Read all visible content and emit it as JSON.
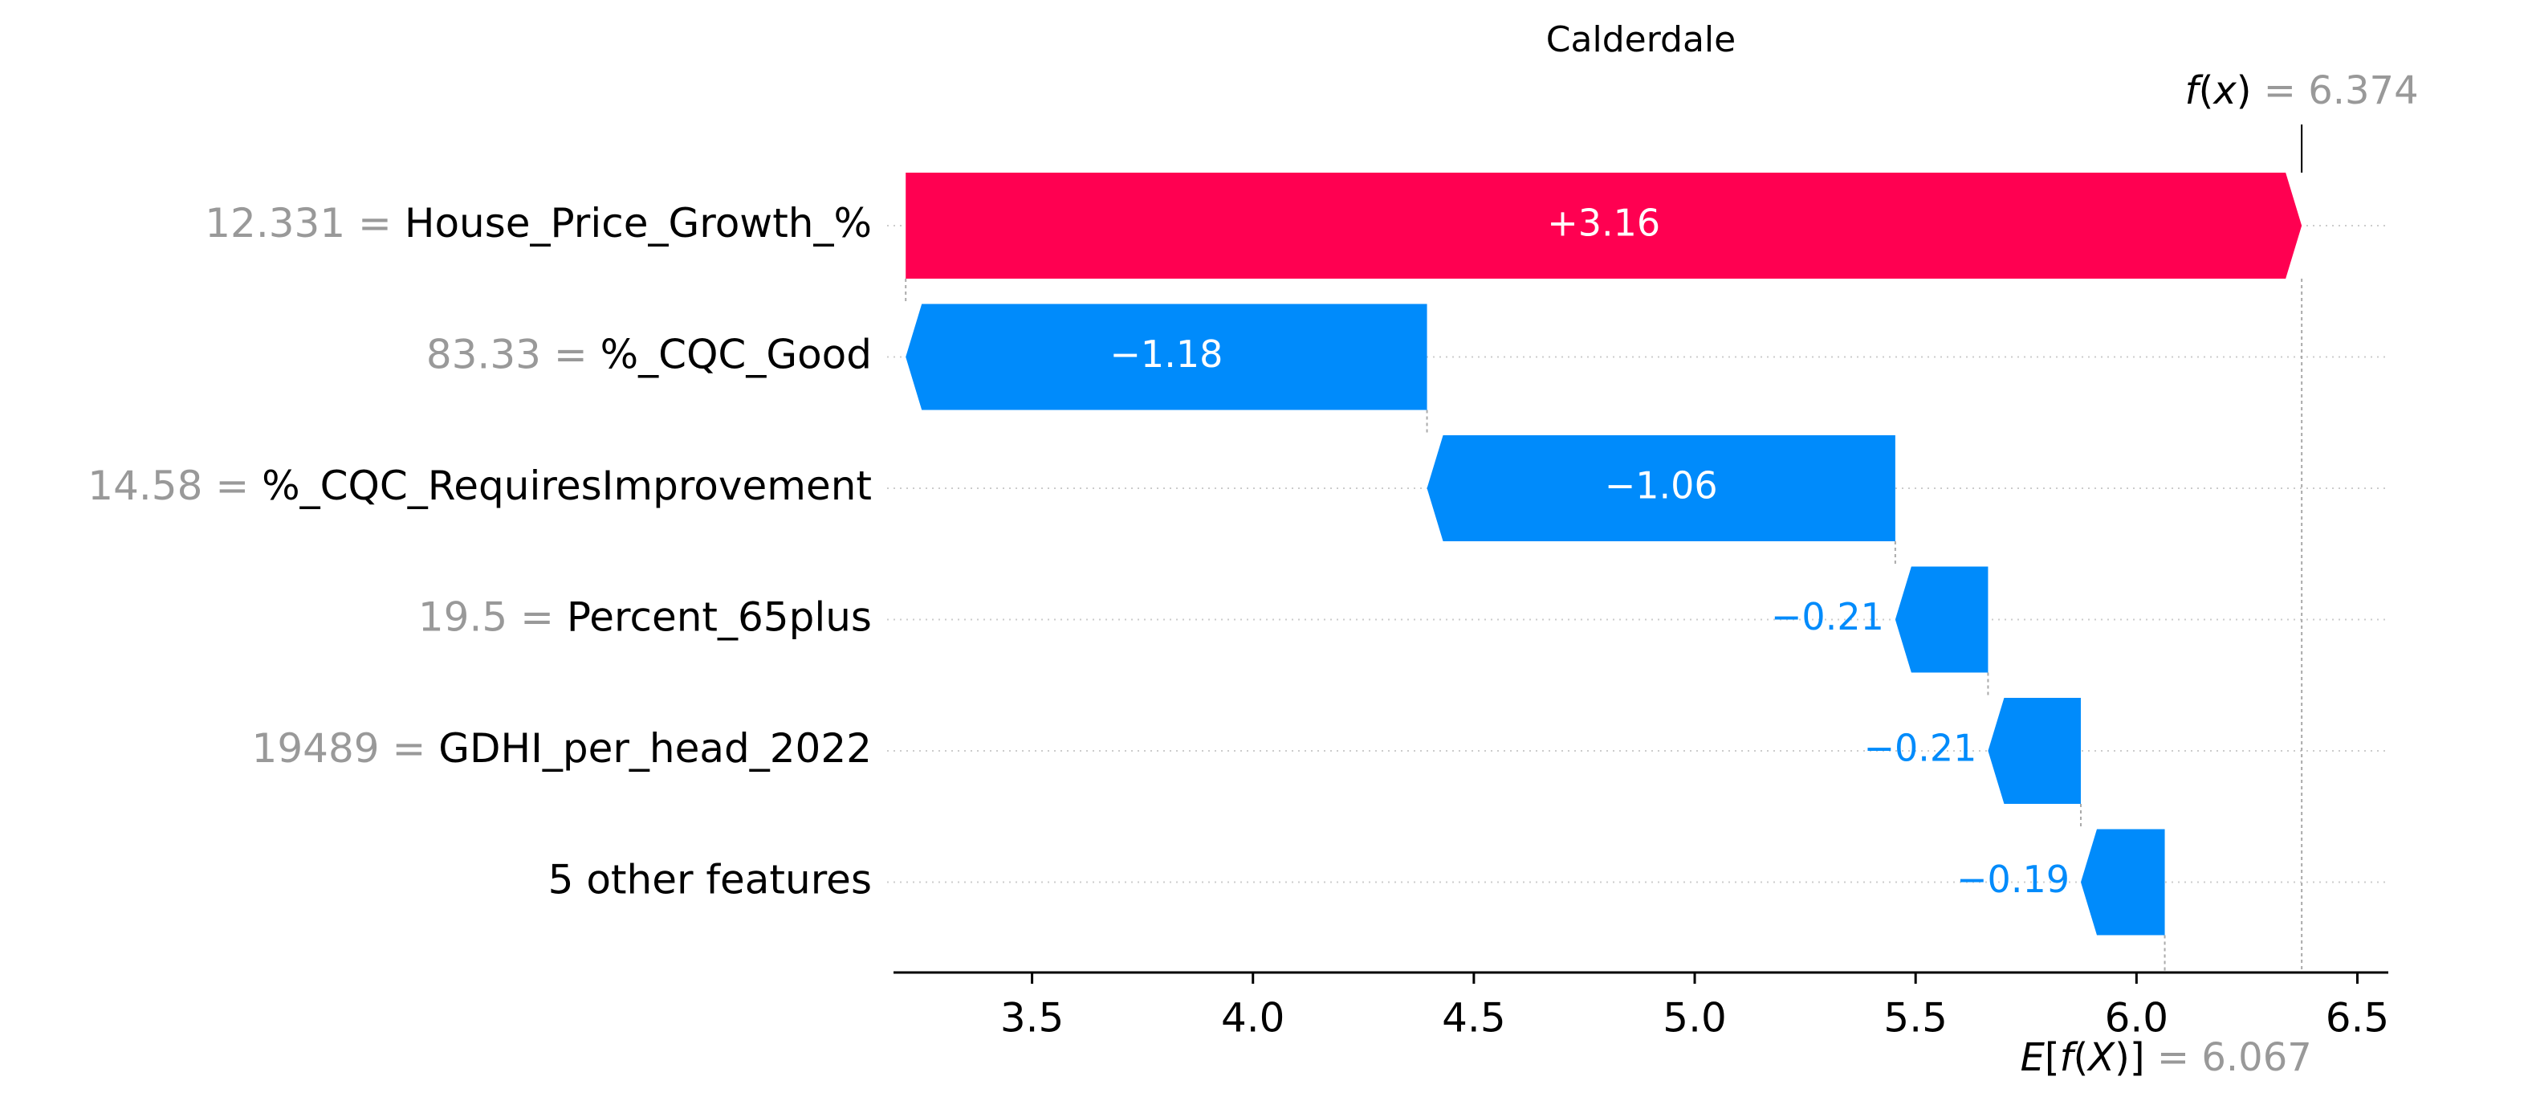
{
  "chart_data": {
    "type": "waterfall",
    "title": "Calderdale",
    "base_value": 6.067,
    "output_value": 6.374,
    "fx_label": {
      "func": "f",
      "arg": "x",
      "eq": " = ",
      "value": "6.374"
    },
    "efx_label": {
      "E": "E",
      "open": "[",
      "func": "f",
      "arg": "X",
      "close": "]",
      "eq": " = ",
      "value": "6.067"
    },
    "features": [
      {
        "value_label": "12.331",
        "name": "House_Price_Growth_%",
        "contribution": 3.16,
        "label": "+3.16"
      },
      {
        "value_label": "83.33",
        "name": "%_CQC_Good",
        "contribution": -1.18,
        "label": "−1.18"
      },
      {
        "value_label": "14.58",
        "name": "%_CQC_RequiresImprovement",
        "contribution": -1.06,
        "label": "−1.06"
      },
      {
        "value_label": "19.5",
        "name": "Percent_65plus",
        "contribution": -0.21,
        "label": "−0.21"
      },
      {
        "value_label": "19489",
        "name": "GDHI_per_head_2022",
        "contribution": -0.21,
        "label": "−0.21"
      },
      {
        "value_label": "",
        "name": "5 other features",
        "contribution": -0.19,
        "label": "−0.19"
      }
    ],
    "equals_sign": " = ",
    "x_ticks": [
      3.5,
      4.0,
      4.5,
      5.0,
      5.5,
      6.0,
      6.5
    ],
    "x_tick_labels": [
      "3.5",
      "4.0",
      "4.5",
      "5.0",
      "5.5",
      "6.0",
      "6.5"
    ],
    "xlim": [
      3.19,
      6.57
    ],
    "grid": "horizontal dotted per row",
    "colors": {
      "positive": "#ff0051",
      "negative": "#008bfb",
      "muted": "#999999",
      "text": "#000000"
    }
  }
}
